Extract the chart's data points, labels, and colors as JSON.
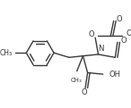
{
  "bg_color": "#ffffff",
  "line_color": "#3a3a3a",
  "lw": 1.0,
  "figsize": [
    1.46,
    1.21
  ],
  "dpi": 100,
  "xlim": [
    0,
    146
  ],
  "ylim": [
    0,
    121
  ]
}
